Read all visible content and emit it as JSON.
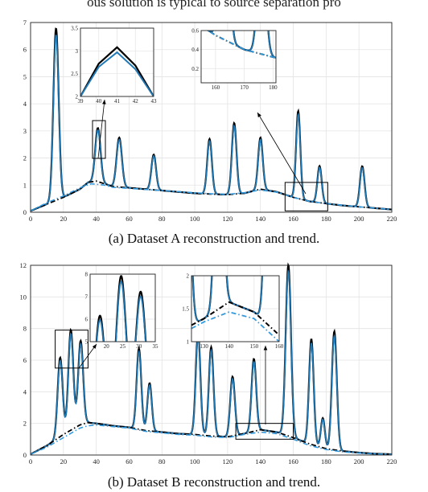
{
  "header_text": "ous solution is typical to source separation pro",
  "captions": [
    "(a) Dataset A reconstruction and trend.",
    "(b) Dataset B reconstruction and trend."
  ],
  "colors": {
    "reconstruction": "#1f78b4",
    "reference": "#000000",
    "trend_reference": "#000000",
    "trend_estimate": "#3399dd",
    "grid": "#e3e3e3"
  },
  "chart_data": [
    {
      "type": "line",
      "panel": "a",
      "xlim": [
        0,
        220
      ],
      "ylim": [
        0,
        7
      ],
      "xticks": [
        0,
        20,
        40,
        60,
        80,
        100,
        120,
        140,
        160,
        180,
        200,
        220
      ],
      "yticks": [
        0,
        1,
        2,
        3,
        4,
        5,
        6,
        7
      ],
      "grid": true,
      "baseline_points": [
        [
          0,
          0.05
        ],
        [
          10,
          0.3
        ],
        [
          20,
          0.55
        ],
        [
          30,
          0.85
        ],
        [
          35,
          1.1
        ],
        [
          40,
          1.15
        ],
        [
          45,
          1.05
        ],
        [
          50,
          0.95
        ],
        [
          60,
          0.9
        ],
        [
          70,
          0.85
        ],
        [
          80,
          0.8
        ],
        [
          90,
          0.75
        ],
        [
          100,
          0.7
        ],
        [
          110,
          0.67
        ],
        [
          120,
          0.65
        ],
        [
          130,
          0.7
        ],
        [
          140,
          0.85
        ],
        [
          150,
          0.75
        ],
        [
          160,
          0.55
        ],
        [
          170,
          0.4
        ],
        [
          180,
          0.32
        ],
        [
          190,
          0.25
        ],
        [
          200,
          0.2
        ],
        [
          210,
          0.15
        ],
        [
          220,
          0.1
        ]
      ],
      "trend_points": [
        [
          0,
          0.05
        ],
        [
          10,
          0.35
        ],
        [
          20,
          0.6
        ],
        [
          30,
          0.9
        ],
        [
          37,
          1.05
        ],
        [
          45,
          1.0
        ],
        [
          50,
          0.92
        ],
        [
          60,
          0.88
        ],
        [
          70,
          0.84
        ],
        [
          80,
          0.8
        ],
        [
          90,
          0.76
        ],
        [
          100,
          0.72
        ],
        [
          110,
          0.68
        ],
        [
          120,
          0.66
        ],
        [
          130,
          0.72
        ],
        [
          140,
          0.82
        ],
        [
          150,
          0.74
        ],
        [
          160,
          0.55
        ],
        [
          170,
          0.4
        ],
        [
          180,
          0.32
        ],
        [
          190,
          0.26
        ],
        [
          200,
          0.2
        ],
        [
          210,
          0.15
        ],
        [
          220,
          0.1
        ]
      ],
      "peaks": [
        {
          "x": 15.5,
          "height": 6.1,
          "width": 1.6
        },
        {
          "x": 41,
          "height": 1.9,
          "width": 1.6
        },
        {
          "x": 54,
          "height": 1.75,
          "width": 1.6
        },
        {
          "x": 75,
          "height": 1.25,
          "width": 1.4
        },
        {
          "x": 109,
          "height": 1.95,
          "width": 1.4
        },
        {
          "x": 124,
          "height": 2.52,
          "width": 1.4
        },
        {
          "x": 140,
          "height": 1.83,
          "width": 1.4
        },
        {
          "x": 163,
          "height": 3.1,
          "width": 1.3
        },
        {
          "x": 176,
          "height": 1.3,
          "width": 1.3
        },
        {
          "x": 202,
          "height": 1.45,
          "width": 1.4
        }
      ],
      "insets": [
        {
          "xlim": [
            39,
            43
          ],
          "ylim": [
            2,
            3.5
          ],
          "xticks": [
            39,
            40,
            41,
            42,
            43
          ],
          "yticks": [
            2,
            2.5,
            3,
            3.5
          ],
          "ref_line": [
            [
              39,
              2.0
            ],
            [
              40,
              2.72
            ],
            [
              41,
              3.08
            ],
            [
              42,
              2.68
            ],
            [
              43,
              2.0
            ]
          ],
          "est_line": [
            [
              39,
              2.0
            ],
            [
              40,
              2.65
            ],
            [
              41,
              2.97
            ],
            [
              42,
              2.6
            ],
            [
              43,
              2.0
            ]
          ]
        },
        {
          "xlim": [
            155,
            181
          ],
          "ylim": [
            0.05,
            0.6
          ],
          "xticks": [
            160,
            170,
            180
          ],
          "yticks": [
            0.2,
            0.4,
            0.6
          ],
          "zoom_box": {
            "x": [
              155,
              181
            ],
            "y": [
              0.05,
              1.1
            ]
          }
        }
      ]
    },
    {
      "type": "line",
      "panel": "b",
      "xlim": [
        0,
        220
      ],
      "ylim": [
        0,
        12
      ],
      "xticks": [
        0,
        20,
        40,
        60,
        80,
        100,
        120,
        140,
        160,
        180,
        200,
        220
      ],
      "yticks": [
        0,
        2,
        4,
        6,
        8,
        10,
        12
      ],
      "grid": true,
      "baseline_points": [
        [
          0,
          0.05
        ],
        [
          10,
          0.6
        ],
        [
          20,
          1.3
        ],
        [
          30,
          1.9
        ],
        [
          35,
          2.05
        ],
        [
          40,
          2.0
        ],
        [
          50,
          1.85
        ],
        [
          60,
          1.75
        ],
        [
          70,
          1.55
        ],
        [
          80,
          1.45
        ],
        [
          90,
          1.35
        ],
        [
          100,
          1.3
        ],
        [
          110,
          1.2
        ],
        [
          120,
          1.15
        ],
        [
          130,
          1.35
        ],
        [
          140,
          1.6
        ],
        [
          150,
          1.45
        ],
        [
          160,
          1.1
        ],
        [
          170,
          0.7
        ],
        [
          180,
          0.4
        ],
        [
          190,
          0.25
        ],
        [
          200,
          0.15
        ],
        [
          210,
          0.08
        ],
        [
          220,
          0.05
        ]
      ],
      "trend_points": [
        [
          0,
          0.05
        ],
        [
          10,
          0.5
        ],
        [
          20,
          1.1
        ],
        [
          30,
          1.7
        ],
        [
          35,
          1.85
        ],
        [
          40,
          1.9
        ],
        [
          50,
          1.8
        ],
        [
          60,
          1.7
        ],
        [
          70,
          1.5
        ],
        [
          80,
          1.4
        ],
        [
          90,
          1.3
        ],
        [
          100,
          1.25
        ],
        [
          110,
          1.15
        ],
        [
          120,
          1.1
        ],
        [
          130,
          1.3
        ],
        [
          140,
          1.45
        ],
        [
          150,
          1.35
        ],
        [
          160,
          1.0
        ],
        [
          170,
          0.6
        ],
        [
          180,
          0.35
        ],
        [
          190,
          0.2
        ],
        [
          200,
          0.12
        ],
        [
          210,
          0.06
        ],
        [
          220,
          0.04
        ]
      ],
      "peaks": [
        {
          "x": 18,
          "height": 4.8,
          "width": 1.5
        },
        {
          "x": 24.5,
          "height": 6.1,
          "width": 1.5
        },
        {
          "x": 30.5,
          "height": 5.1,
          "width": 1.5
        },
        {
          "x": 66,
          "height": 4.9,
          "width": 1.4
        },
        {
          "x": 72.5,
          "height": 2.9,
          "width": 1.3
        },
        {
          "x": 102,
          "height": 6.2,
          "width": 1.4
        },
        {
          "x": 110,
          "height": 5.4,
          "width": 1.4
        },
        {
          "x": 123,
          "height": 3.6,
          "width": 1.4
        },
        {
          "x": 136,
          "height": 4.4,
          "width": 1.4
        },
        {
          "x": 157,
          "height": 10.4,
          "width": 1.6
        },
        {
          "x": 171,
          "height": 6.4,
          "width": 1.4
        },
        {
          "x": 178,
          "height": 1.8,
          "width": 1.2
        },
        {
          "x": 185,
          "height": 7.2,
          "width": 1.5
        }
      ],
      "insets": [
        {
          "xlim": [
            15,
            35
          ],
          "ylim": [
            5,
            8
          ],
          "xticks": [
            20,
            25,
            30,
            35
          ],
          "yticks": [
            5,
            6,
            7,
            8
          ],
          "zoom_box": {
            "x": [
              15,
              35
            ],
            "y": [
              5.5,
              7.9
            ]
          }
        },
        {
          "xlim": [
            125,
            160
          ],
          "ylim": [
            1,
            2
          ],
          "xticks": [
            130,
            140,
            150,
            160
          ],
          "yticks": [
            1,
            1.5,
            2
          ],
          "zoom_box": {
            "x": [
              125,
              160
            ],
            "y": [
              1.0,
              2.0
            ]
          }
        }
      ]
    }
  ]
}
